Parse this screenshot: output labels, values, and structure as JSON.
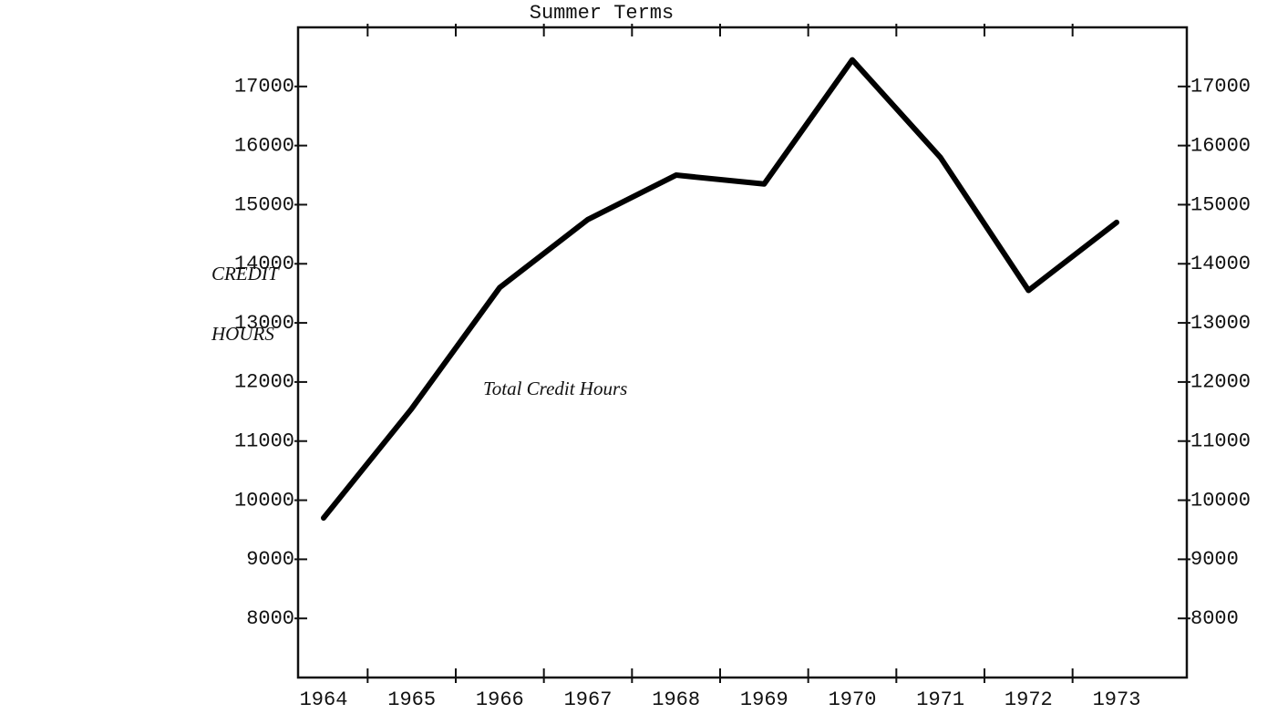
{
  "chart_data": {
    "type": "line",
    "title": "Summer Terms",
    "y_label": [
      "CREDIT",
      "HOURS"
    ],
    "annotation": "Total Credit Hours",
    "categories": [
      "1964",
      "1965",
      "1966",
      "1967",
      "1968",
      "1969",
      "1970",
      "1971",
      "1972",
      "1973"
    ],
    "series": [
      {
        "name": "Total Credit Hours",
        "color": "#000000",
        "values": [
          9700,
          11550,
          13600,
          14750,
          15500,
          15350,
          17450,
          15800,
          13550,
          14700
        ]
      }
    ],
    "ylim": [
      7000,
      18000
    ],
    "yticks": [
      8000,
      9000,
      10000,
      11000,
      12000,
      13000,
      14000,
      15000,
      16000,
      17000
    ],
    "y2lim": [
      7000,
      18000
    ],
    "y2ticks": [
      8000,
      9000,
      10000,
      11000,
      12000,
      13000,
      14000,
      15000,
      16000,
      17000
    ],
    "grid": false
  }
}
